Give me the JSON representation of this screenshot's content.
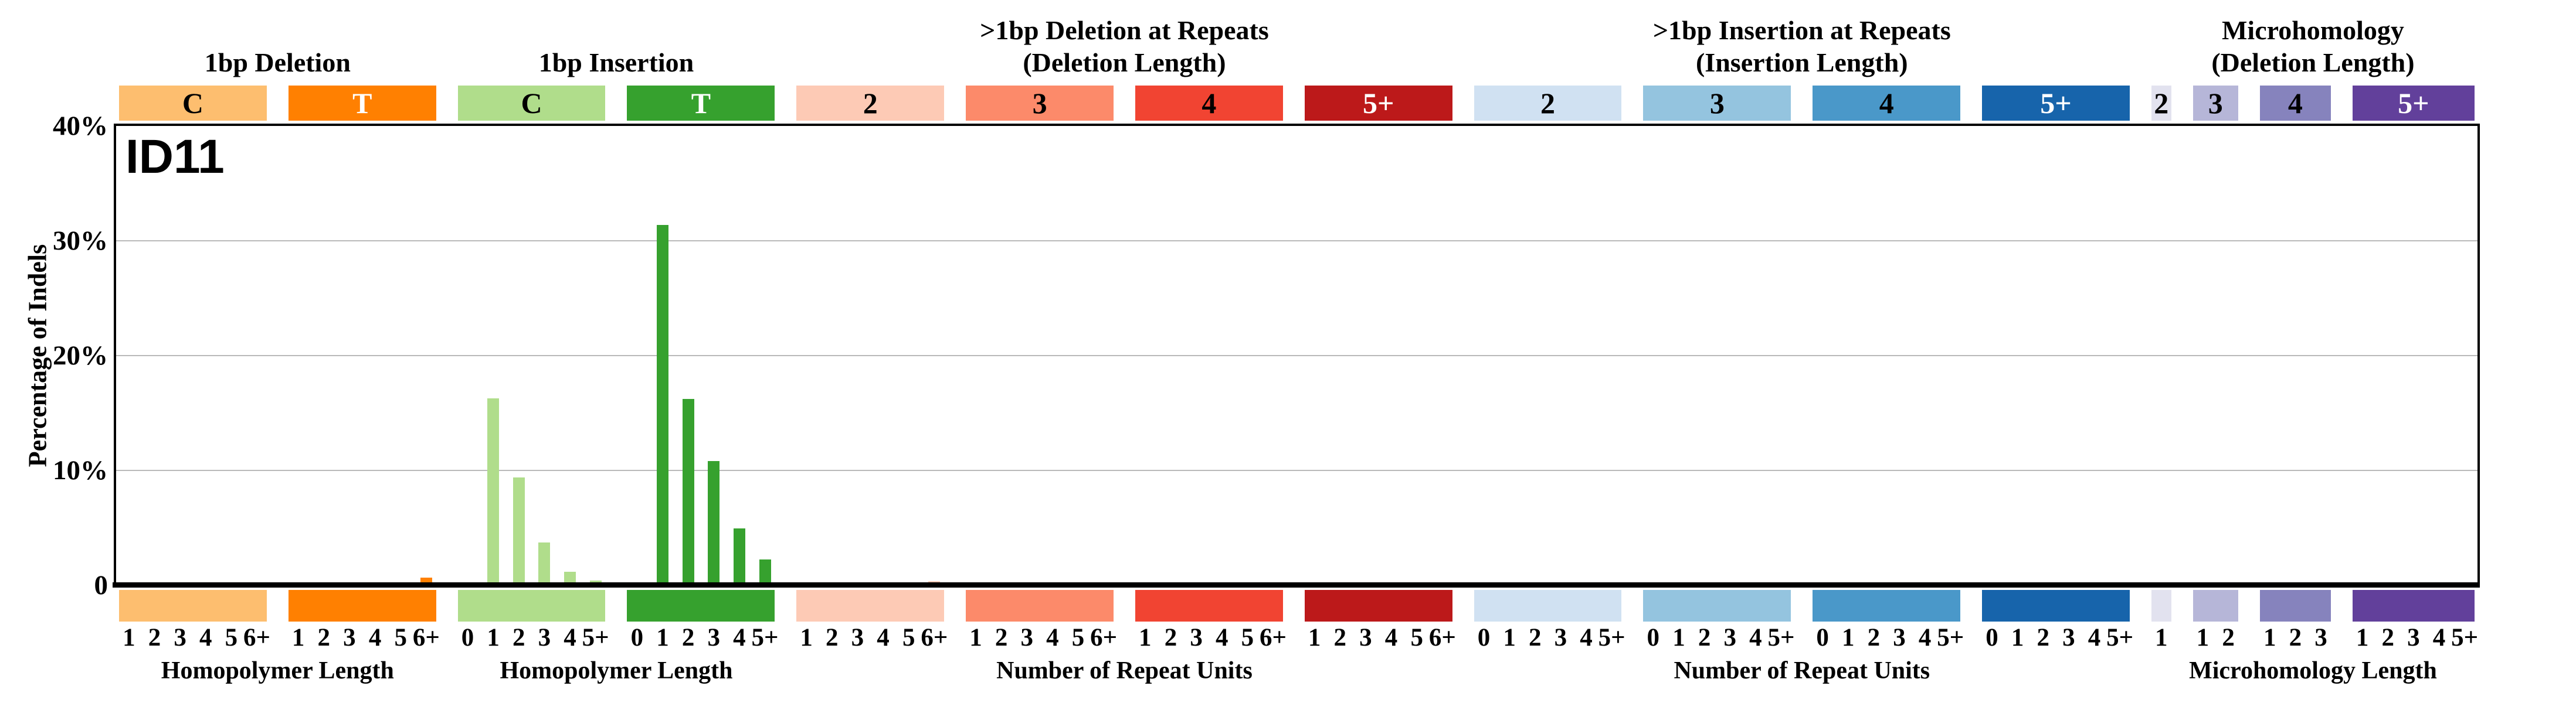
{
  "figure": {
    "title": "ID11",
    "y_axis_title": "Percentage of Indels"
  },
  "chart_data": {
    "type": "bar",
    "title": "ID11",
    "ylabel": "Percentage of Indels",
    "ylim": [
      0,
      40
    ],
    "grid": "horizontal",
    "gridline_values": [
      10,
      20,
      30
    ],
    "yticks": [
      {
        "label": "40%",
        "value": 40
      },
      {
        "label": "30%",
        "value": 30
      },
      {
        "label": "20%",
        "value": 20
      },
      {
        "label": "10%",
        "value": 10
      },
      {
        "label": "0",
        "value": 0
      }
    ],
    "sections": [
      {
        "title": "1bp Deletion",
        "start": 0,
        "end": 1
      },
      {
        "title": "1bp Insertion",
        "start": 2,
        "end": 3
      },
      {
        "title": ">1bp Deletion at Repeats\n(Deletion Length)",
        "start": 4,
        "end": 7
      },
      {
        "title": ">1bp Insertion at Repeats\n(Insertion Length)",
        "start": 8,
        "end": 11
      },
      {
        "title": "Microhomology\n(Deletion Length)",
        "start": 12,
        "end": 15
      }
    ],
    "groups": [
      {
        "key": "1bp-del-C",
        "box_label": "C",
        "color": "#FDBE6F",
        "label_color": "#000000",
        "categories": [
          "1",
          "2",
          "3",
          "4",
          "5",
          "6+"
        ],
        "values": [
          0.14,
          0.05,
          0.06,
          0.04,
          0.04,
          0.04
        ]
      },
      {
        "key": "1bp-del-T",
        "box_label": "T",
        "color": "#FF8001",
        "label_color": "#ffffff",
        "categories": [
          "1",
          "2",
          "3",
          "4",
          "5",
          "6+"
        ],
        "values": [
          0.11,
          0.08,
          0.1,
          0.08,
          0.26,
          0.68
        ]
      },
      {
        "key": "1bp-ins-C",
        "box_label": "C",
        "color": "#B0DD8B",
        "label_color": "#000000",
        "categories": [
          "0",
          "1",
          "2",
          "3",
          "4",
          "5+"
        ],
        "values": [
          0.05,
          16.3,
          9.4,
          3.7,
          1.15,
          0.4
        ]
      },
      {
        "key": "1bp-ins-T",
        "box_label": "T",
        "color": "#36A12E",
        "label_color": "#ffffff",
        "categories": [
          "0",
          "1",
          "2",
          "3",
          "4",
          "5+"
        ],
        "values": [
          0.13,
          31.4,
          16.2,
          10.8,
          4.95,
          2.25
        ]
      },
      {
        "key": "del-repeats-len2",
        "box_label": "2",
        "color": "#FDCAB5",
        "label_color": "#000000",
        "categories": [
          "1",
          "2",
          "3",
          "4",
          "5",
          "6+"
        ],
        "values": [
          0.1,
          0.04,
          0.05,
          0.04,
          0.06,
          0.38
        ]
      },
      {
        "key": "del-repeats-len3",
        "box_label": "3",
        "color": "#FC8A6A",
        "label_color": "#000000",
        "categories": [
          "1",
          "2",
          "3",
          "4",
          "5",
          "6+"
        ],
        "values": [
          0.12,
          0.05,
          0.05,
          0.05,
          0.16,
          0.18
        ]
      },
      {
        "key": "del-repeats-len4",
        "box_label": "4",
        "color": "#F14432",
        "label_color": "#000000",
        "categories": [
          "1",
          "2",
          "3",
          "4",
          "5",
          "6+"
        ],
        "values": [
          0.06,
          0.1,
          0.05,
          0.05,
          0.09,
          0.1
        ]
      },
      {
        "key": "del-repeats-len5+",
        "box_label": "5+",
        "color": "#BC191A",
        "label_color": "#ffffff",
        "categories": [
          "1",
          "2",
          "3",
          "4",
          "5",
          "6+"
        ],
        "values": [
          0.12,
          0.1,
          0.05,
          0.04,
          0.04,
          0.05
        ]
      },
      {
        "key": "ins-repeats-len2",
        "box_label": "2",
        "color": "#D0E1F2",
        "label_color": "#000000",
        "categories": [
          "0",
          "1",
          "2",
          "3",
          "4",
          "5+"
        ],
        "values": [
          0.04,
          0.04,
          0.05,
          0.07,
          0.07,
          0.07
        ]
      },
      {
        "key": "ins-repeats-len3",
        "box_label": "3",
        "color": "#94C4DF",
        "label_color": "#000000",
        "categories": [
          "0",
          "1",
          "2",
          "3",
          "4",
          "5+"
        ],
        "values": [
          0.05,
          0.12,
          0.05,
          0.04,
          0.04,
          0.04
        ]
      },
      {
        "key": "ins-repeats-len4",
        "box_label": "4",
        "color": "#4A98C9",
        "label_color": "#000000",
        "categories": [
          "0",
          "1",
          "2",
          "3",
          "4",
          "5+"
        ],
        "values": [
          0.04,
          0.1,
          0.04,
          0.04,
          0.04,
          0.04
        ]
      },
      {
        "key": "ins-repeats-len5+",
        "box_label": "5+",
        "color": "#1764AB",
        "label_color": "#ffffff",
        "categories": [
          "0",
          "1",
          "2",
          "3",
          "4",
          "5+"
        ],
        "values": [
          0.08,
          0.13,
          0.08,
          0.04,
          0.04,
          0.04
        ]
      },
      {
        "key": "microhomology-len2",
        "box_label": "2",
        "color": "#E2E2EF",
        "label_color": "#000000",
        "categories": [
          "1"
        ],
        "values": [
          0.1
        ]
      },
      {
        "key": "microhomology-len3",
        "box_label": "3",
        "color": "#B6B6D8",
        "label_color": "#000000",
        "categories": [
          "1",
          "2"
        ],
        "values": [
          0.04,
          0.05
        ]
      },
      {
        "key": "microhomology-len4",
        "box_label": "4",
        "color": "#8683BD",
        "label_color": "#000000",
        "categories": [
          "1",
          "2",
          "3"
        ],
        "values": [
          0.04,
          0.05,
          0.1
        ]
      },
      {
        "key": "microhomology-len5+",
        "box_label": "5+",
        "color": "#62409B",
        "label_color": "#ffffff",
        "categories": [
          "1",
          "2",
          "3",
          "4",
          "5+"
        ],
        "values": [
          0.09,
          0.07,
          0.07,
          0.04,
          0.08
        ]
      }
    ],
    "footer_labels": [
      {
        "text": "Homopolymer Length",
        "start": 0,
        "end": 1
      },
      {
        "text": "Homopolymer Length",
        "start": 2,
        "end": 3
      },
      {
        "text": "Number of Repeat Units",
        "start": 4,
        "end": 7
      },
      {
        "text": "Number of Repeat Units",
        "start": 8,
        "end": 11
      },
      {
        "text": "Microhomology Length",
        "start": 12,
        "end": 15
      }
    ]
  }
}
